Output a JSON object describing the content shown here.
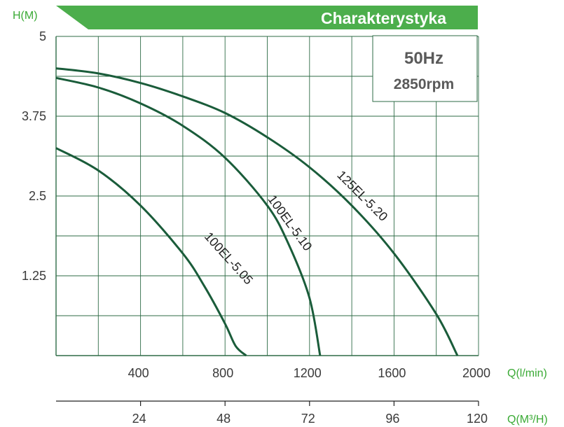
{
  "header": {
    "title": "Charakterystyka"
  },
  "badge": {
    "freq": "50Hz",
    "rpm": "2850rpm"
  },
  "colors": {
    "accent": "#4cae4c",
    "curve": "#1a5c3a",
    "grid": "#2e6b46",
    "axisText": "#3a3a3a",
    "unitText": "#3aaa35"
  },
  "chart_data": {
    "type": "line",
    "ylabel": "H(M)",
    "xlabel": "Q(l/min)",
    "x2label": "Q(M³/H)",
    "ylim": [
      0,
      5
    ],
    "xlim": [
      0,
      2000
    ],
    "x2lim": [
      0,
      120
    ],
    "yticks": [
      "5",
      "3.75",
      "2.5",
      "1.25"
    ],
    "ytick_values": [
      5,
      3.75,
      2.5,
      1.25
    ],
    "xticks": [
      "400",
      "800",
      "1200",
      "1600",
      "2000"
    ],
    "xtick_values": [
      400,
      800,
      1200,
      1600,
      2000
    ],
    "x2ticks": [
      "24",
      "48",
      "72",
      "96",
      "120"
    ],
    "x2tick_values": [
      24,
      48,
      72,
      96,
      120
    ],
    "grid": true,
    "series": [
      {
        "name": "100EL-5.05",
        "x": [
          0,
          200,
          400,
          600,
          700,
          800,
          850,
          900
        ],
        "y": [
          3.25,
          2.9,
          2.35,
          1.6,
          1.1,
          0.5,
          0.15,
          0
        ]
      },
      {
        "name": "100EL-5.10",
        "x": [
          0,
          200,
          400,
          600,
          800,
          1000,
          1100,
          1200,
          1250
        ],
        "y": [
          4.35,
          4.2,
          3.95,
          3.6,
          3.1,
          2.35,
          1.75,
          0.9,
          0
        ]
      },
      {
        "name": "125EL-5.20",
        "x": [
          0,
          200,
          400,
          600,
          800,
          1000,
          1200,
          1400,
          1600,
          1800,
          1900
        ],
        "y": [
          4.5,
          4.42,
          4.27,
          4.06,
          3.8,
          3.42,
          2.95,
          2.35,
          1.6,
          0.65,
          0
        ]
      }
    ]
  }
}
